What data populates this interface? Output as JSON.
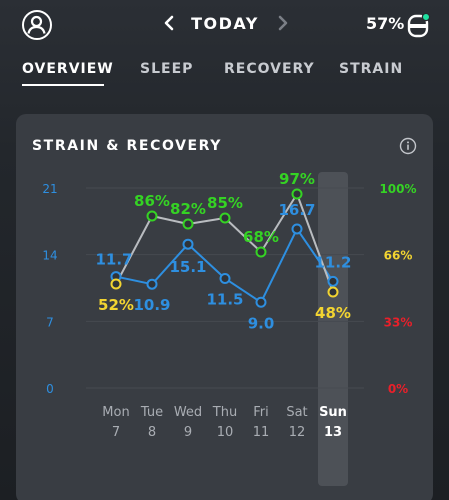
{
  "header": {
    "title": "TODAY",
    "battery": "57%",
    "battery_level": 57
  },
  "tabs": [
    {
      "label": "OVERVIEW",
      "active": true
    },
    {
      "label": "SLEEP",
      "active": false
    },
    {
      "label": "RECOVERY",
      "active": false
    },
    {
      "label": "STRAIN",
      "active": false
    }
  ],
  "card": {
    "title": "STRAIN & RECOVERY"
  },
  "colors": {
    "strain": "#2e8fe0",
    "recovery_high": "#35d324",
    "recovery_mid": "#f2d431",
    "recovery_low": "#e8202a",
    "line_recovery": "#b9bcc0",
    "status_dot": "#1fe0a0"
  },
  "chart_data": {
    "type": "line",
    "categories": [
      "Mon",
      "Tue",
      "Wed",
      "Thu",
      "Fri",
      "Sat",
      "Sun"
    ],
    "dates": [
      "7",
      "8",
      "9",
      "10",
      "11",
      "12",
      "13"
    ],
    "selected_index": 6,
    "left_axis": {
      "ticks": [
        "21",
        "14",
        "7",
        "0"
      ],
      "range": [
        0,
        21
      ]
    },
    "right_axis": {
      "ticks": [
        "100%",
        "66%",
        "33%",
        "0%"
      ],
      "range": [
        0,
        100
      ]
    },
    "series": [
      {
        "name": "Strain",
        "values": [
          11.7,
          10.9,
          15.1,
          11.5,
          9.0,
          16.7,
          11.2
        ],
        "labels": [
          "11.7",
          "10.9",
          "15.1",
          "11.5",
          "9.0",
          "16.7",
          "11.2"
        ]
      },
      {
        "name": "Recovery",
        "values": [
          52,
          86,
          82,
          85,
          68,
          97,
          48
        ],
        "labels": [
          "52%",
          "86%",
          "82%",
          "85%",
          "68%",
          "97%",
          "48%"
        ]
      }
    ]
  }
}
